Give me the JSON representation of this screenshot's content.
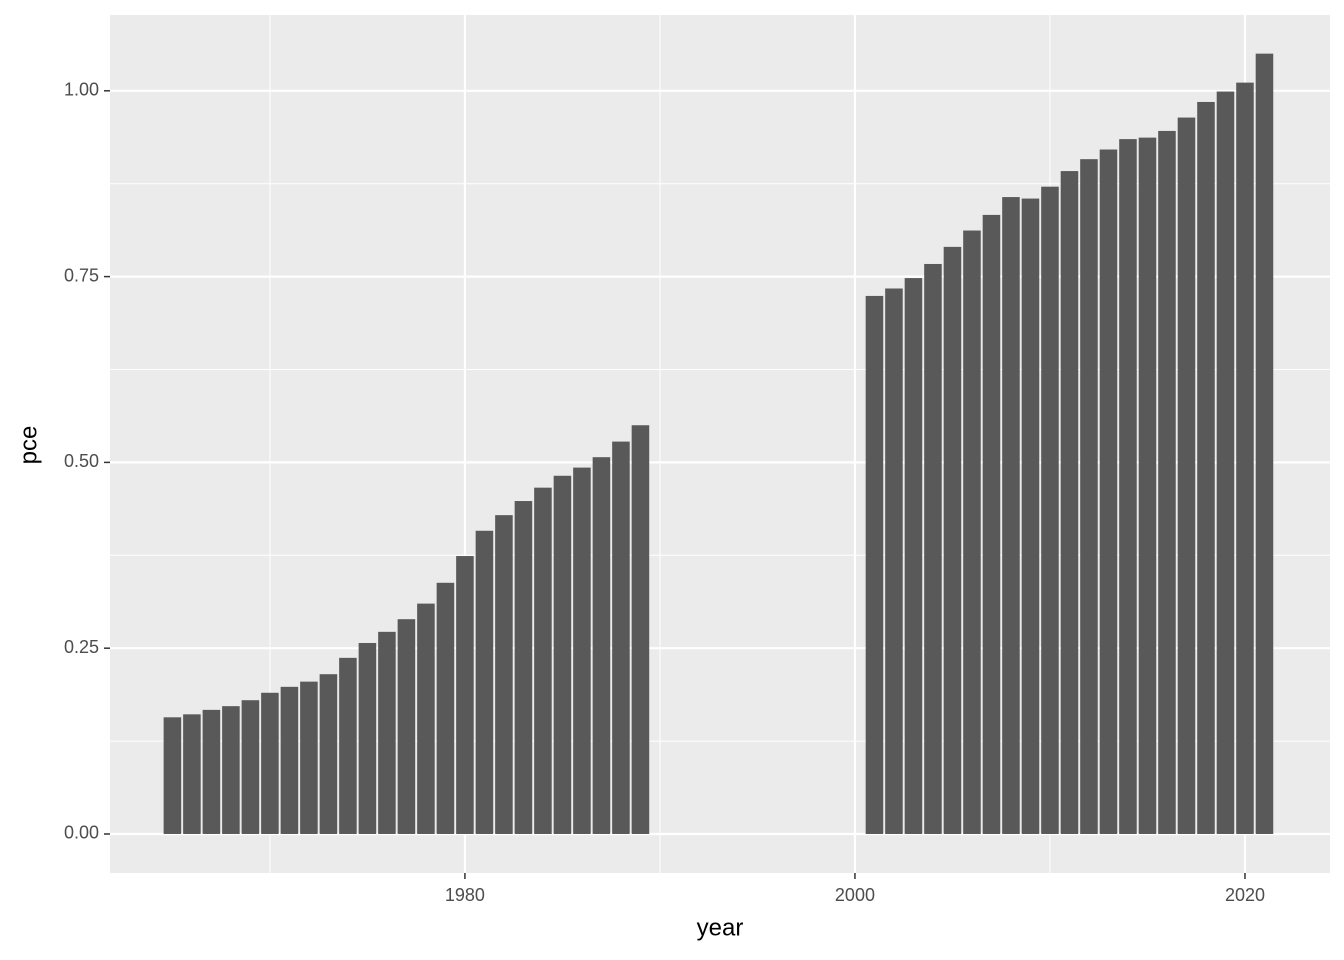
{
  "chart_data": {
    "type": "bar",
    "x_label": "year",
    "y_label": "pce",
    "x": [
      1965,
      1966,
      1967,
      1968,
      1969,
      1970,
      1971,
      1972,
      1973,
      1974,
      1975,
      1976,
      1977,
      1978,
      1979,
      1980,
      1981,
      1982,
      1983,
      1984,
      1985,
      1986,
      1987,
      1988,
      1989,
      2001,
      2002,
      2003,
      2004,
      2005,
      2006,
      2007,
      2008,
      2009,
      2010,
      2011,
      2012,
      2013,
      2014,
      2015,
      2016,
      2017,
      2018,
      2019,
      2020,
      2021
    ],
    "values": [
      0.157,
      0.161,
      0.167,
      0.172,
      0.18,
      0.19,
      0.198,
      0.205,
      0.215,
      0.237,
      0.257,
      0.272,
      0.289,
      0.31,
      0.338,
      0.374,
      0.408,
      0.429,
      0.448,
      0.466,
      0.482,
      0.493,
      0.507,
      0.528,
      0.55,
      0.724,
      0.734,
      0.748,
      0.767,
      0.79,
      0.812,
      0.833,
      0.857,
      0.855,
      0.871,
      0.892,
      0.908,
      0.921,
      0.935,
      0.937,
      0.946,
      0.964,
      0.985,
      0.999,
      1.011,
      1.05
    ],
    "color": "#595959",
    "xlim": [
      1961.8,
      2024.36
    ],
    "ylim": [
      -0.0525,
      1.102
    ],
    "xticks": [
      1980,
      2000,
      2020
    ],
    "yticks": [
      {
        "value": 0,
        "label": "0.00"
      },
      {
        "value": 0.25,
        "label": "0.25"
      },
      {
        "value": 0.5,
        "label": "0.50"
      },
      {
        "value": 0.75,
        "label": "0.75"
      },
      {
        "value": 1,
        "label": "1.00"
      }
    ],
    "grid": true
  }
}
